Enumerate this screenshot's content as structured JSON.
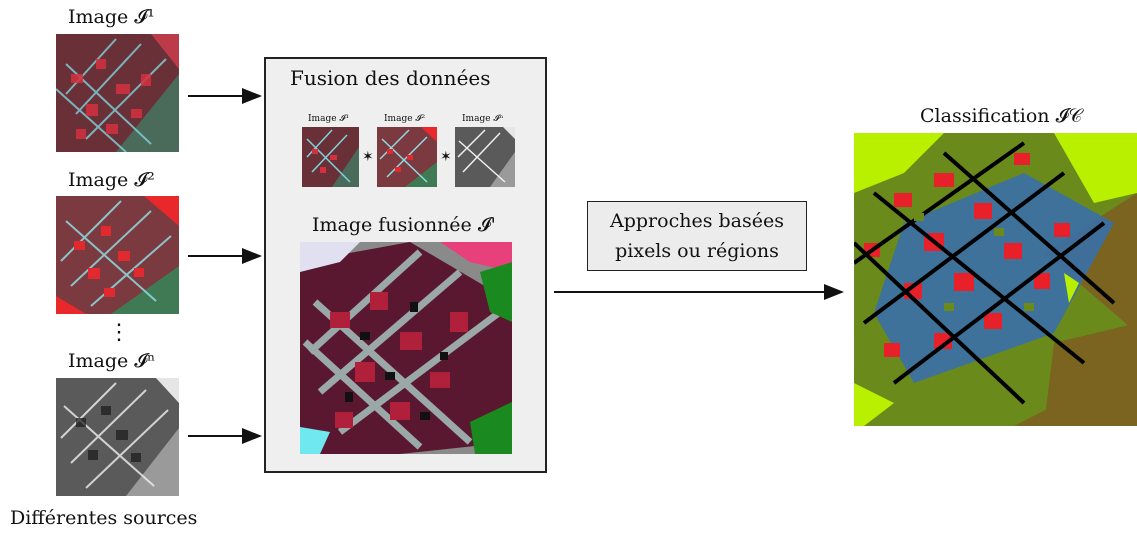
{
  "sources": {
    "image1_label": "Image 𝓘¹",
    "image2_label": "Image 𝓘²",
    "imagen_label": "Image 𝓘ⁿ",
    "ellipsis": "⋮",
    "caption": "Différentes sources"
  },
  "fusion": {
    "title": "Fusion des données",
    "thumb1_label": "Image 𝓘¹",
    "thumb2_label": "Image 𝓘²",
    "thumbn_label": "Image 𝓘ⁿ",
    "operator": "✶",
    "fused_label": "Image fusionnée 𝓘'"
  },
  "approach": {
    "line1": "Approches basées",
    "line2": "pixels ou régions"
  },
  "classification": {
    "label": "Classification 𝓘𝒞"
  },
  "colors": {
    "sat_red": "#c8283c",
    "sat_cyan": "#6fd0d8",
    "sat_green": "#3f7a55",
    "class_lime": "#b8f000",
    "class_red": "#e8202a",
    "class_blue": "#3a6fa8",
    "class_olive": "#6a8a1c",
    "class_brown": "#7a6420",
    "class_black": "#000000"
  }
}
